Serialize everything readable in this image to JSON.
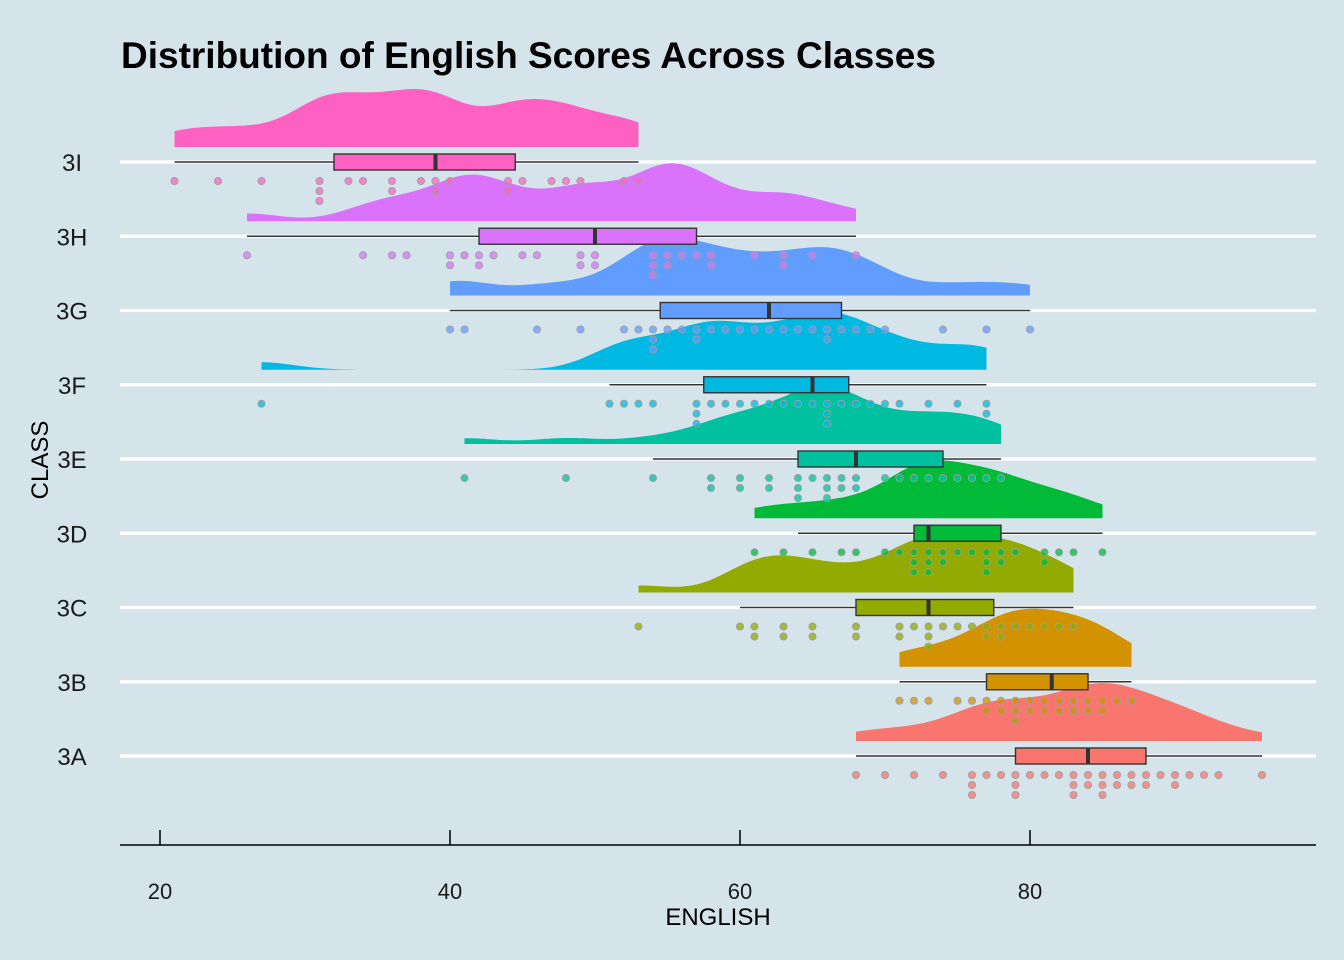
{
  "chart_data": {
    "type": "raincloud",
    "title": "Distribution of English Scores Across Classes",
    "xlabel": "ENGLISH",
    "ylabel": "CLASS",
    "xlim": [
      16,
      98
    ],
    "x_ticks": [
      20,
      40,
      60,
      80
    ],
    "categories": [
      "3A",
      "3B",
      "3C",
      "3D",
      "3E",
      "3F",
      "3G",
      "3H",
      "3I"
    ],
    "grid": "horizontal",
    "legend": "none",
    "background_color": "#d5e4eb",
    "series": [
      {
        "name": "3A",
        "color": "#f8766d",
        "min": 68,
        "q1": 79,
        "median": 84,
        "q3": 88,
        "max": 96,
        "points": [
          68,
          70,
          72,
          74,
          76,
          76,
          76,
          77,
          78,
          79,
          79,
          79,
          80,
          81,
          82,
          83,
          83,
          83,
          84,
          84,
          85,
          85,
          85,
          86,
          86,
          87,
          87,
          88,
          88,
          89,
          90,
          90,
          91,
          92,
          93,
          96
        ]
      },
      {
        "name": "3B",
        "color": "#d39200",
        "min": 71,
        "q1": 77,
        "median": 81.5,
        "q3": 84,
        "max": 87,
        "points": [
          71,
          72,
          73,
          75,
          76,
          77,
          77,
          78,
          78,
          79,
          79,
          79,
          80,
          80,
          81,
          81,
          82,
          82,
          83,
          83,
          84,
          84,
          85,
          85,
          86,
          87
        ]
      },
      {
        "name": "3C",
        "color": "#93aa00",
        "min": 60,
        "q1": 68,
        "median": 73,
        "q3": 77.5,
        "max": 83,
        "points": [
          53,
          60,
          61,
          61,
          63,
          63,
          65,
          65,
          68,
          68,
          71,
          71,
          72,
          73,
          73,
          73,
          74,
          75,
          76,
          77,
          77,
          78,
          78,
          79,
          80,
          81,
          82,
          83
        ]
      },
      {
        "name": "3D",
        "color": "#00ba38",
        "min": 64,
        "q1": 72,
        "median": 73,
        "q3": 78,
        "max": 85,
        "points": [
          61,
          63,
          65,
          67,
          68,
          70,
          71,
          72,
          72,
          72,
          73,
          73,
          73,
          74,
          74,
          75,
          76,
          77,
          77,
          77,
          78,
          78,
          79,
          81,
          81,
          82,
          83,
          85
        ]
      },
      {
        "name": "3E",
        "color": "#00c19f",
        "min": 54,
        "q1": 64,
        "median": 68,
        "q3": 74,
        "max": 78,
        "points": [
          41,
          48,
          54,
          58,
          58,
          60,
          60,
          62,
          62,
          64,
          64,
          64,
          65,
          66,
          66,
          66,
          67,
          67,
          68,
          68,
          70,
          71,
          72,
          73,
          74,
          75,
          76,
          77,
          78
        ]
      },
      {
        "name": "3F",
        "color": "#00b9e3",
        "min": 51,
        "q1": 57.5,
        "median": 65,
        "q3": 67.5,
        "max": 77,
        "points": [
          27,
          51,
          52,
          53,
          54,
          57,
          57,
          57,
          58,
          59,
          60,
          61,
          62,
          63,
          64,
          65,
          66,
          66,
          66,
          67,
          68,
          69,
          70,
          71,
          73,
          75,
          77,
          77
        ]
      },
      {
        "name": "3G",
        "color": "#619cff",
        "min": 40,
        "q1": 54.5,
        "median": 62,
        "q3": 67,
        "max": 80,
        "points": [
          40,
          41,
          46,
          49,
          52,
          53,
          54,
          54,
          54,
          55,
          56,
          57,
          57,
          58,
          59,
          60,
          61,
          62,
          63,
          64,
          65,
          66,
          66,
          67,
          68,
          69,
          70,
          74,
          77,
          80
        ]
      },
      {
        "name": "3H",
        "color": "#db72fb",
        "min": 26,
        "q1": 42,
        "median": 50,
        "q3": 57,
        "max": 68,
        "points": [
          26,
          34,
          36,
          37,
          40,
          40,
          41,
          42,
          42,
          43,
          45,
          46,
          49,
          49,
          50,
          50,
          54,
          54,
          54,
          55,
          55,
          56,
          57,
          58,
          58,
          61,
          63,
          63,
          65,
          68
        ]
      },
      {
        "name": "3I",
        "color": "#ff61c3",
        "min": 21,
        "q1": 32,
        "median": 39,
        "q3": 44.5,
        "max": 53,
        "points": [
          21,
          24,
          27,
          31,
          31,
          31,
          33,
          34,
          36,
          36,
          38,
          39,
          39,
          40,
          44,
          44,
          45,
          47,
          48,
          49,
          52,
          53
        ]
      }
    ]
  }
}
